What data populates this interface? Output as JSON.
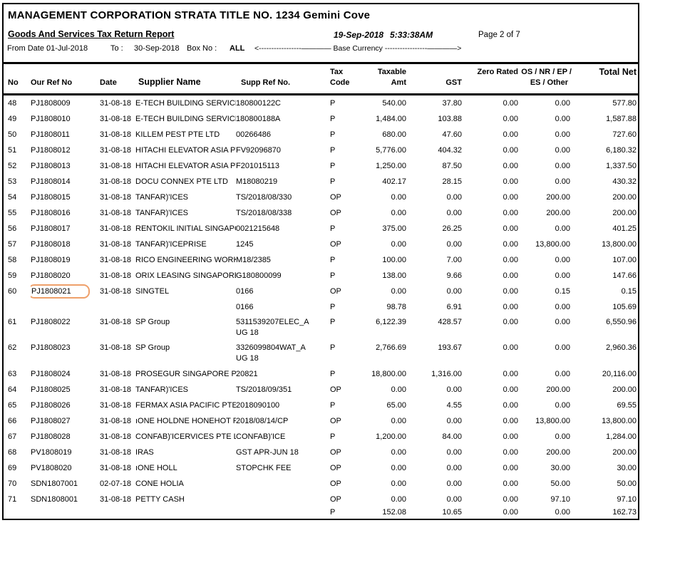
{
  "header": {
    "title": "MANAGEMENT CORPORATION STRATA TITLE NO. 1234 Gemini Cove",
    "report_title": "Goods And Services Tax Return Report",
    "report_date": "19-Sep-2018",
    "report_time": "5:33:38AM",
    "page_label": "Page 2 of 7",
    "from_date_label": "From Date :",
    "from_date": "01-Jul-2018",
    "to_label": "To :",
    "to_date": "30-Sep-2018",
    "box_no_label": "Box No :",
    "box_no": "ALL",
    "base_currency_label": "<-----------------———— Base Currency -----------------————>"
  },
  "columns": {
    "no": "No",
    "our_ref_no": "Our Ref No",
    "date": "Date",
    "supplier_name": "Supplier Name",
    "supp_ref_no": "Supp Ref No.",
    "tax_line1": "Tax",
    "tax_line2": "Code",
    "taxable_line1": "Taxable",
    "taxable_line2": "Amt",
    "gst": "GST",
    "zero_rated": "Zero Rated",
    "os_line1": "OS / NR / EP /",
    "os_line2": "ES / Other",
    "total_net": "Total Net"
  },
  "annotation": {
    "highlight_color": "#efa06a",
    "highlighted_value": "PJ1808021"
  },
  "rows": [
    {
      "no": "48",
      "ref": "PJ1808009",
      "date": "31-08-18",
      "supplier": "E-TECH BUILDING SERVICES",
      "supp_ref": "180800122C",
      "tax": "P",
      "taxable": "540.00",
      "gst": "37.80",
      "zero": "0.00",
      "os": "0.00",
      "total": "577.80"
    },
    {
      "no": "49",
      "ref": "PJ1808010",
      "date": "31-08-18",
      "supplier": "E-TECH BUILDING SERVICES",
      "supp_ref": "180800188A",
      "tax": "P",
      "taxable": "1,484.00",
      "gst": "103.88",
      "zero": "0.00",
      "os": "0.00",
      "total": "1,587.88"
    },
    {
      "no": "50",
      "ref": "PJ1808011",
      "date": "31-08-18",
      "supplier": "KILLEM PEST PTE LTD",
      "supp_ref": "00266486",
      "tax": "P",
      "taxable": "680.00",
      "gst": "47.60",
      "zero": "0.00",
      "os": "0.00",
      "total": "727.60"
    },
    {
      "no": "51",
      "ref": "PJ1808012",
      "date": "31-08-18",
      "supplier": "HITACHI ELEVATOR ASIA PT",
      "supp_ref": "FV92096870",
      "tax": "P",
      "taxable": "5,776.00",
      "gst": "404.32",
      "zero": "0.00",
      "os": "0.00",
      "total": "6,180.32"
    },
    {
      "no": "52",
      "ref": "PJ1808013",
      "date": "31-08-18",
      "supplier": "HITACHI ELEVATOR ASIA PT",
      "supp_ref": "F201015113",
      "tax": "P",
      "taxable": "1,250.00",
      "gst": "87.50",
      "zero": "0.00",
      "os": "0.00",
      "total": "1,337.50"
    },
    {
      "no": "53",
      "ref": "PJ1808014",
      "date": "31-08-18",
      "supplier": "DOCU CONNEX PTE LTD",
      "supp_ref": "M18080219",
      "tax": "P",
      "taxable": "402.17",
      "gst": "28.15",
      "zero": "0.00",
      "os": "0.00",
      "total": "430.32"
    },
    {
      "no": "54",
      "ref": "PJ1808015",
      "date": "31-08-18",
      "supplier": "TANFAR)'ICES",
      "supp_ref": "TS/2018/08/330",
      "tax": "OP",
      "taxable": "0.00",
      "gst": "0.00",
      "zero": "0.00",
      "os": "200.00",
      "total": "200.00"
    },
    {
      "no": "55",
      "ref": "PJ1808016",
      "date": "31-08-18",
      "supplier": "TANFAR)'ICES",
      "supp_ref": "TS/2018/08/338",
      "tax": "OP",
      "taxable": "0.00",
      "gst": "0.00",
      "zero": "0.00",
      "os": "200.00",
      "total": "200.00"
    },
    {
      "no": "56",
      "ref": "PJ1808017",
      "date": "31-08-18",
      "supplier": "RENTOKIL INITIAL SINGAPO",
      "supp_ref": "0021215648",
      "tax": "P",
      "taxable": "375.00",
      "gst": "26.25",
      "zero": "0.00",
      "os": "0.00",
      "total": "401.25"
    },
    {
      "no": "57",
      "ref": "PJ1808018",
      "date": "31-08-18",
      "supplier": "TANFAR)'ICEPRISE",
      "supp_ref": "1245",
      "tax": "OP",
      "taxable": "0.00",
      "gst": "0.00",
      "zero": "0.00",
      "os": "13,800.00",
      "total": "13,800.00"
    },
    {
      "no": "58",
      "ref": "PJ1808019",
      "date": "31-08-18",
      "supplier": "RICO ENGINEERING WORKS",
      "supp_ref": "M18/2385",
      "tax": "P",
      "taxable": "100.00",
      "gst": "7.00",
      "zero": "0.00",
      "os": "0.00",
      "total": "107.00"
    },
    {
      "no": "59",
      "ref": "PJ1808020",
      "date": "31-08-18",
      "supplier": "ORIX LEASING SINGAPORE I",
      "supp_ref": "G180800099",
      "tax": "P",
      "taxable": "138.00",
      "gst": "9.66",
      "zero": "0.00",
      "os": "0.00",
      "total": "147.66"
    },
    {
      "no": "60",
      "ref": "PJ1808021",
      "highlight": true,
      "date": "31-08-18",
      "supplier": "SINGTEL",
      "supp_ref": "0166",
      "tax": "OP",
      "taxable": "0.00",
      "gst": "0.00",
      "zero": "0.00",
      "os": "0.15",
      "total": "0.15"
    },
    {
      "no": "",
      "ref": "",
      "date": "",
      "supplier": "",
      "supp_ref": "0166",
      "tax": "P",
      "taxable": "98.78",
      "gst": "6.91",
      "zero": "0.00",
      "os": "0.00",
      "total": "105.69"
    },
    {
      "no": "61",
      "ref": "PJ1808022",
      "date": "31-08-18",
      "supplier": "SP Group",
      "supp_ref": "5311539207ELEC_A\nUG 18",
      "tall": true,
      "tax": "P",
      "taxable": "6,122.39",
      "gst": "428.57",
      "zero": "0.00",
      "os": "0.00",
      "total": "6,550.96"
    },
    {
      "no": "62",
      "ref": "PJ1808023",
      "date": "31-08-18",
      "supplier": "SP Group",
      "supp_ref": "3326099804WAT_A\nUG 18",
      "tall": true,
      "tax": "P",
      "taxable": "2,766.69",
      "gst": "193.67",
      "zero": "0.00",
      "os": "0.00",
      "total": "2,960.36"
    },
    {
      "no": "63",
      "ref": "PJ1808024",
      "date": "31-08-18",
      "supplier": "PROSEGUR SINGAPORE PT",
      "supp_ref": "20821",
      "tax": "P",
      "taxable": "18,800.00",
      "gst": "1,316.00",
      "zero": "0.00",
      "os": "0.00",
      "total": "20,116.00"
    },
    {
      "no": "64",
      "ref": "PJ1808025",
      "date": "31-08-18",
      "supplier": "TANFAR)'ICES",
      "supp_ref": "TS/2018/09/351",
      "tax": "OP",
      "taxable": "0.00",
      "gst": "0.00",
      "zero": "0.00",
      "os": "200.00",
      "total": "200.00"
    },
    {
      "no": "65",
      "ref": "PJ1808026",
      "date": "31-08-18",
      "supplier": "FERMAX ASIA PACIFIC PTE L",
      "supp_ref": "2018090100",
      "tax": "P",
      "taxable": "65.00",
      "gst": "4.55",
      "zero": "0.00",
      "os": "0.00",
      "total": "69.55"
    },
    {
      "no": "66",
      "ref": "PJ1808027",
      "date": "31-08-18",
      "supplier": "ıONE HOLDNE HONEHOT PT",
      "supp_ref": "2018/08/14/CP",
      "tax": "OP",
      "taxable": "0.00",
      "gst": "0.00",
      "zero": "0.00",
      "os": "13,800.00",
      "total": "13,800.00"
    },
    {
      "no": "67",
      "ref": "PJ1808028",
      "date": "31-08-18",
      "supplier": "CONFAB)'ICERVICES PTE L",
      "supp_ref": "CONFAB)'ICE",
      "tax": "P",
      "taxable": "1,200.00",
      "gst": "84.00",
      "zero": "0.00",
      "os": "0.00",
      "total": "1,284.00"
    },
    {
      "no": "68",
      "ref": "PV1808019",
      "date": "31-08-18",
      "supplier": "IRAS",
      "supp_ref": "GST APR-JUN 18",
      "tax": "OP",
      "taxable": "0.00",
      "gst": "0.00",
      "zero": "0.00",
      "os": "200.00",
      "total": "200.00"
    },
    {
      "no": "69",
      "ref": "PV1808020",
      "date": "31-08-18",
      "supplier": "ıONE HOLL",
      "supp_ref": "STOPCHK FEE",
      "tax": "OP",
      "taxable": "0.00",
      "gst": "0.00",
      "zero": "0.00",
      "os": "30.00",
      "total": "30.00"
    },
    {
      "no": "70",
      "ref": "SDN1807001",
      "date": "02-07-18",
      "supplier": "CONE HOLIA",
      "supp_ref": "",
      "tax": "OP",
      "taxable": "0.00",
      "gst": "0.00",
      "zero": "0.00",
      "os": "50.00",
      "total": "50.00"
    },
    {
      "no": "71",
      "ref": "SDN1808001",
      "date": "31-08-18",
      "supplier": "PETTY CASH",
      "supp_ref": "",
      "tax": "OP",
      "taxable": "0.00",
      "gst": "0.00",
      "zero": "0.00",
      "os": "97.10",
      "total": "97.10"
    },
    {
      "no": "",
      "ref": "",
      "date": "",
      "supplier": "",
      "supp_ref": "",
      "sum": true,
      "tax": "P",
      "taxable": "152.08",
      "gst": "10.65",
      "zero": "0.00",
      "os": "0.00",
      "total": "162.73"
    }
  ]
}
